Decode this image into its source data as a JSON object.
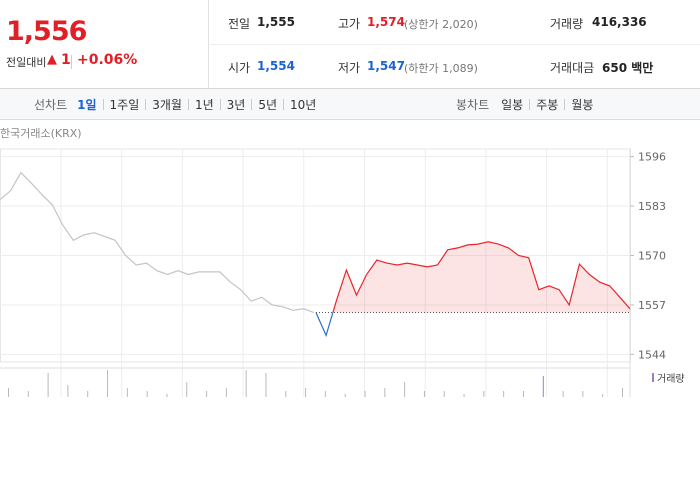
{
  "header": {
    "price": "1,556",
    "change_label": "전일대비",
    "change_arrow": "▲",
    "change": "1",
    "change_pct": "+0.06%"
  },
  "stats": [
    {
      "label": "전일",
      "value": "1,555"
    },
    {
      "label": "고가",
      "value": "1,574",
      "note": "(상한가 2,020)"
    },
    {
      "label": "거래량",
      "value": "416,336"
    },
    {
      "label": "시가",
      "value": "1,554"
    },
    {
      "label": "저가",
      "value": "1,547",
      "note": "(하한가 1,089)"
    },
    {
      "label": "거래대금",
      "value": "650 백만"
    }
  ],
  "line_tabs": {
    "label": "선차트",
    "items": [
      "1일",
      "1주일",
      "3개월",
      "1년",
      "3년",
      "5년",
      "10년"
    ]
  },
  "candle_tabs": {
    "label": "봉차트",
    "items": [
      "일봉",
      "주봉",
      "월봉"
    ]
  },
  "chart_data": {
    "type": "line",
    "source": "한국거래소(KRX)",
    "ylim": [
      1542,
      1598
    ],
    "yticks": [
      1596,
      1583,
      1570,
      1557,
      1544
    ],
    "grid": true,
    "reference": 1555,
    "series": [
      {
        "color": "#c4c4c4",
        "values": [
          1584.7,
          1587,
          1591.8,
          1589,
          1586,
          1583.3,
          1578,
          1574,
          1575.4,
          1576,
          1575,
          1574,
          1570,
          1567.5,
          1568,
          1566,
          1565,
          1566,
          1565,
          1565.7,
          1565.7,
          1565.7,
          1563,
          1561,
          1558,
          1559,
          1557,
          1556.5,
          1555.6,
          1556,
          1555
        ]
      },
      {
        "color": "#e8262b",
        "color_below": "#2b6fd6",
        "values": [
          1555,
          1549,
          1558,
          1566.2,
          1559.6,
          1565,
          1568.8,
          1568,
          1567.5,
          1568,
          1567.5,
          1567,
          1567.5,
          1571.5,
          1572,
          1572.8,
          1573,
          1573.6,
          1573,
          1572,
          1570,
          1569.4,
          1561,
          1562,
          1561,
          1557,
          1567.7,
          1565,
          1563,
          1562,
          1559,
          1556
        ]
      }
    ],
    "volume": {
      "name": "거래량",
      "color": "#b9b9b9",
      "highlight": "#9a7fc8",
      "values": [
        3,
        2,
        8,
        4,
        2,
        9,
        3,
        2,
        1,
        5,
        2,
        3,
        9,
        8,
        2,
        3,
        2,
        1,
        2,
        3,
        5,
        2,
        2,
        1,
        2,
        2,
        2,
        7,
        2,
        2,
        1,
        3
      ]
    }
  }
}
